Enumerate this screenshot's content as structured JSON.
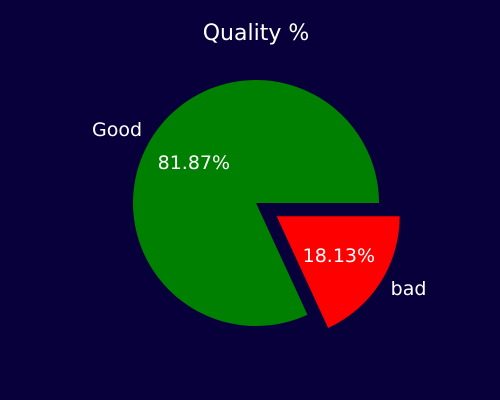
{
  "chart_data": {
    "type": "pie",
    "title": "Quality %",
    "slices": [
      {
        "label": "Good",
        "value": 81.87,
        "pct_label": "81.87%",
        "color": "#008000",
        "explode": false
      },
      {
        "label": "bad",
        "value": 18.13,
        "pct_label": "18.13%",
        "color": "#ff0000",
        "explode": true
      }
    ],
    "background": "#07003a",
    "legend": "none"
  }
}
